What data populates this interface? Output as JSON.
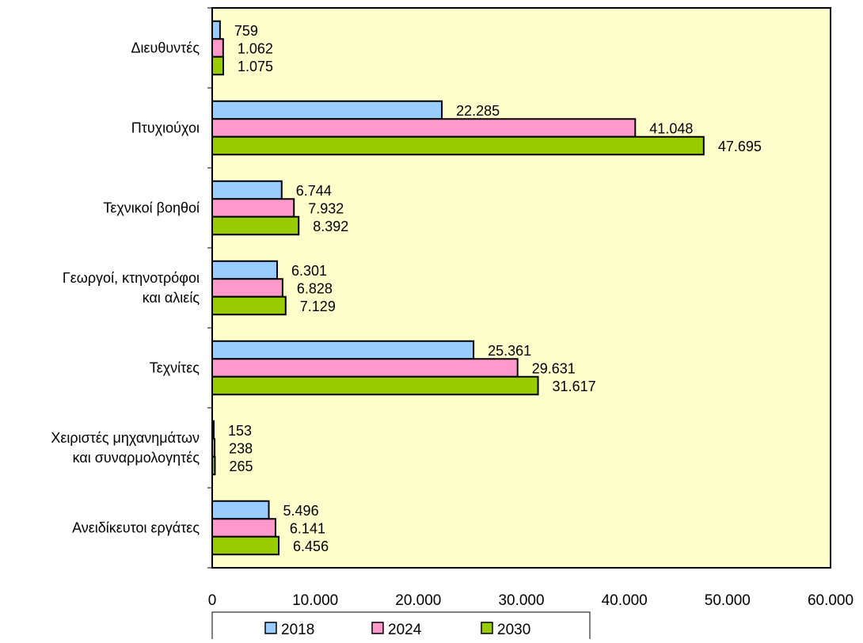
{
  "chart_data": {
    "type": "bar",
    "orientation": "horizontal",
    "categories": [
      [
        "Διευθυντές"
      ],
      [
        "Πτυχιούχοι"
      ],
      [
        "Τεχνικοί βοηθοί"
      ],
      [
        "Γεωργοί, κτηνοτρόφοι",
        "και αλιείς"
      ],
      [
        "Τεχνίτες"
      ],
      [
        "Χειριστές μηχανημάτων",
        "και συναρμολογητές"
      ],
      [
        "Ανειδίκευτοι εργάτες"
      ]
    ],
    "series": [
      {
        "name": "2018",
        "color": "#99ccff",
        "values": [
          759,
          22285,
          6744,
          6301,
          25361,
          153,
          5496
        ],
        "labels": [
          "759",
          "22.285",
          "6.744",
          "6.301",
          "25.361",
          "153",
          "5.496"
        ]
      },
      {
        "name": "2024",
        "color": "#ff99cc",
        "values": [
          1062,
          41048,
          7932,
          6828,
          29631,
          238,
          6141
        ],
        "labels": [
          "1.062",
          "41.048",
          "7.932",
          "6.828",
          "29.631",
          "238",
          "6.141"
        ]
      },
      {
        "name": "2030",
        "color": "#99cc00",
        "values": [
          1075,
          47695,
          8392,
          7129,
          31617,
          265,
          6456
        ],
        "labels": [
          "1.075",
          "47.695",
          "8.392",
          "7.129",
          "31.617",
          "265",
          "6.456"
        ]
      }
    ],
    "xlim": [
      0,
      60000
    ],
    "xticks": [
      0,
      10000,
      20000,
      30000,
      40000,
      50000,
      60000
    ],
    "xtick_labels": [
      "0",
      "10.000",
      "20.000",
      "30.000",
      "40.000",
      "50.000",
      "60.000"
    ],
    "title": "",
    "xlabel": "",
    "ylabel": "",
    "plot_background": "#ffffcc",
    "grid": false,
    "legend_position": "bottom"
  }
}
